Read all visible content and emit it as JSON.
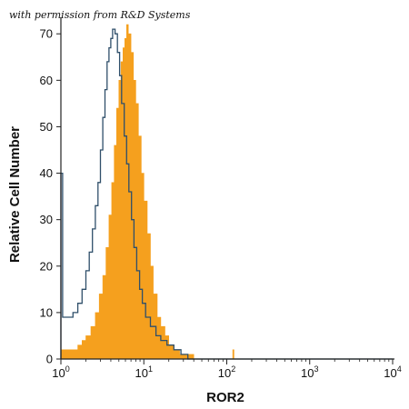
{
  "credit": "with permission from R&D Systems",
  "chart_data": {
    "type": "histogram",
    "xlabel": "ROR2",
    "ylabel": "Relative Cell Number",
    "x_scale": "log",
    "xlim": [
      1,
      10000
    ],
    "ylim": [
      0,
      72
    ],
    "x_ticks": [
      {
        "value": 1,
        "base": "10",
        "exp": "0"
      },
      {
        "value": 10,
        "base": "10",
        "exp": "1"
      },
      {
        "value": 100,
        "base": "10",
        "exp": "2"
      },
      {
        "value": 1000,
        "base": "10",
        "exp": "3"
      },
      {
        "value": 10000,
        "base": "10",
        "exp": "4"
      }
    ],
    "y_ticks": [
      0,
      10,
      20,
      30,
      40,
      50,
      60,
      70
    ],
    "series": [
      {
        "role": "filled",
        "color": "#f5a01e",
        "points": [
          [
            1.0,
            2
          ],
          [
            1.3,
            2
          ],
          [
            1.6,
            3
          ],
          [
            1.8,
            4
          ],
          [
            2.0,
            5
          ],
          [
            2.3,
            7
          ],
          [
            2.6,
            10
          ],
          [
            2.9,
            14
          ],
          [
            3.2,
            18
          ],
          [
            3.5,
            24
          ],
          [
            3.8,
            31
          ],
          [
            4.1,
            38
          ],
          [
            4.4,
            46
          ],
          [
            4.7,
            54
          ],
          [
            5.0,
            60
          ],
          [
            5.3,
            64
          ],
          [
            5.6,
            67
          ],
          [
            5.9,
            69
          ],
          [
            6.2,
            72
          ],
          [
            6.5,
            70
          ],
          [
            7.0,
            66
          ],
          [
            7.5,
            60
          ],
          [
            8.0,
            55
          ],
          [
            8.6,
            48
          ],
          [
            9.3,
            40
          ],
          [
            10.0,
            34
          ],
          [
            11,
            27
          ],
          [
            12,
            20
          ],
          [
            13,
            14
          ],
          [
            14.5,
            9
          ],
          [
            16,
            7
          ],
          [
            18,
            5
          ],
          [
            20,
            3
          ],
          [
            23,
            2
          ],
          [
            27,
            1
          ],
          [
            32,
            1
          ],
          [
            40,
            0
          ],
          [
            115,
            0
          ],
          [
            118,
            2
          ],
          [
            122,
            0
          ],
          [
            10000,
            0
          ]
        ]
      },
      {
        "role": "outline",
        "color": "#2f4f6a",
        "points": [
          [
            1.0,
            40
          ],
          [
            1.05,
            9
          ],
          [
            1.2,
            9
          ],
          [
            1.4,
            10
          ],
          [
            1.6,
            12
          ],
          [
            1.8,
            15
          ],
          [
            2.0,
            19
          ],
          [
            2.2,
            23
          ],
          [
            2.4,
            28
          ],
          [
            2.6,
            33
          ],
          [
            2.8,
            38
          ],
          [
            3.0,
            45
          ],
          [
            3.2,
            52
          ],
          [
            3.4,
            58
          ],
          [
            3.6,
            64
          ],
          [
            3.8,
            67
          ],
          [
            4.0,
            69
          ],
          [
            4.2,
            71
          ],
          [
            4.5,
            70
          ],
          [
            4.8,
            66
          ],
          [
            5.1,
            61
          ],
          [
            5.4,
            55
          ],
          [
            5.8,
            48
          ],
          [
            6.2,
            42
          ],
          [
            6.6,
            36
          ],
          [
            7.1,
            30
          ],
          [
            7.6,
            24
          ],
          [
            8.2,
            19
          ],
          [
            8.9,
            15
          ],
          [
            9.6,
            12
          ],
          [
            10.5,
            9
          ],
          [
            12,
            7
          ],
          [
            14,
            5
          ],
          [
            16,
            4
          ],
          [
            19,
            3
          ],
          [
            23,
            2
          ],
          [
            28,
            1
          ],
          [
            34,
            0
          ],
          [
            10000,
            0
          ]
        ]
      }
    ]
  }
}
